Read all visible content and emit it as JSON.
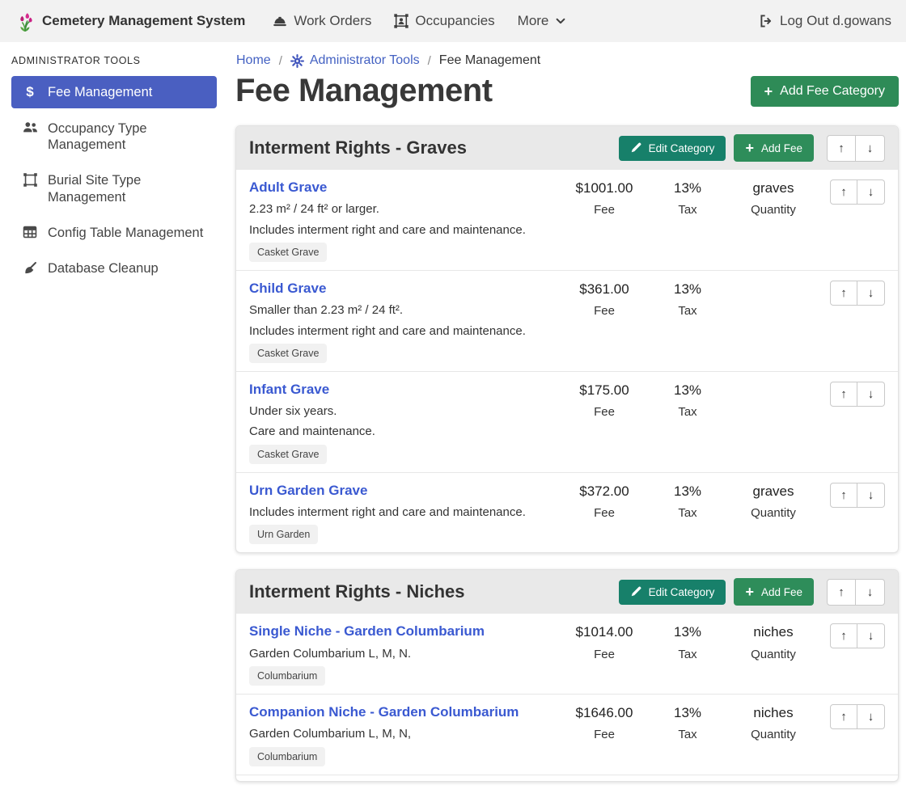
{
  "navbar": {
    "brand": "Cemetery Management System",
    "items": [
      {
        "label": "Work Orders",
        "icon": "hard-hat-icon"
      },
      {
        "label": "Occupancies",
        "icon": "occupancy-frame-icon"
      },
      {
        "label": "More",
        "icon": "chevron-down-icon"
      }
    ],
    "logout": {
      "label": "Log Out d.gowans",
      "icon": "logout-icon"
    }
  },
  "sidebar": {
    "heading": "ADMINISTRATOR TOOLS",
    "items": [
      {
        "label": "Fee Management",
        "icon": "dollar-icon",
        "active": true
      },
      {
        "label": "Occupancy Type Management",
        "icon": "users-icon",
        "active": false
      },
      {
        "label": "Burial Site Type Management",
        "icon": "vector-square-icon",
        "active": false
      },
      {
        "label": "Config Table Management",
        "icon": "table-icon",
        "active": false
      },
      {
        "label": "Database Cleanup",
        "icon": "broom-icon",
        "active": false
      }
    ]
  },
  "breadcrumb": [
    {
      "label": "Home",
      "link": true
    },
    {
      "label": "Administrator Tools",
      "link": true,
      "icon": "gear-icon"
    },
    {
      "label": "Fee Management",
      "link": false
    }
  ],
  "page": {
    "title": "Fee Management",
    "add_category_button": "Add Fee Category"
  },
  "category_actions": {
    "edit_button": "Edit Category",
    "add_fee_button": "Add Fee"
  },
  "column_labels": {
    "fee": "Fee",
    "tax": "Tax",
    "quantity": "Quantity"
  },
  "categories": [
    {
      "title": "Interment Rights - Graves",
      "fees": [
        {
          "name": "Adult Grave",
          "descriptions": [
            "2.23 m² / 24 ft² or larger.",
            "Includes interment right and care and maintenance."
          ],
          "tags": [
            "Casket Grave"
          ],
          "fee": "$1001.00",
          "tax": "13%",
          "quantity": "graves"
        },
        {
          "name": "Child Grave",
          "descriptions": [
            "Smaller than 2.23 m² / 24 ft².",
            "Includes interment right and care and maintenance."
          ],
          "tags": [
            "Casket Grave"
          ],
          "fee": "$361.00",
          "tax": "13%",
          "quantity": ""
        },
        {
          "name": "Infant Grave",
          "descriptions": [
            "Under six years.",
            "Care and maintenance."
          ],
          "tags": [
            "Casket Grave"
          ],
          "fee": "$175.00",
          "tax": "13%",
          "quantity": ""
        },
        {
          "name": "Urn Garden Grave",
          "descriptions": [
            "Includes interment right and care and maintenance."
          ],
          "tags": [
            "Urn Garden"
          ],
          "fee": "$372.00",
          "tax": "13%",
          "quantity": "graves"
        }
      ]
    },
    {
      "title": "Interment Rights - Niches",
      "fees": [
        {
          "name": "Single Niche - Garden Columbarium",
          "descriptions": [
            "Garden Columbarium L, M, N."
          ],
          "tags": [
            "Columbarium"
          ],
          "fee": "$1014.00",
          "tax": "13%",
          "quantity": "niches"
        },
        {
          "name": "Companion Niche - Garden Columbarium",
          "descriptions": [
            "Garden Columbarium L, M, N,"
          ],
          "tags": [
            "Columbarium"
          ],
          "fee": "$1646.00",
          "tax": "13%",
          "quantity": "niches"
        }
      ]
    }
  ],
  "colors": {
    "navbar_bg": "#f2f2f2",
    "active_item_blue": "#4a5fc1",
    "link_blue": "#3a59d1",
    "breadcrumb_blue": "#4361c2",
    "green_button": "#2e8b57",
    "teal_button": "#17806a",
    "card_header_bg": "#e9e9e9"
  }
}
